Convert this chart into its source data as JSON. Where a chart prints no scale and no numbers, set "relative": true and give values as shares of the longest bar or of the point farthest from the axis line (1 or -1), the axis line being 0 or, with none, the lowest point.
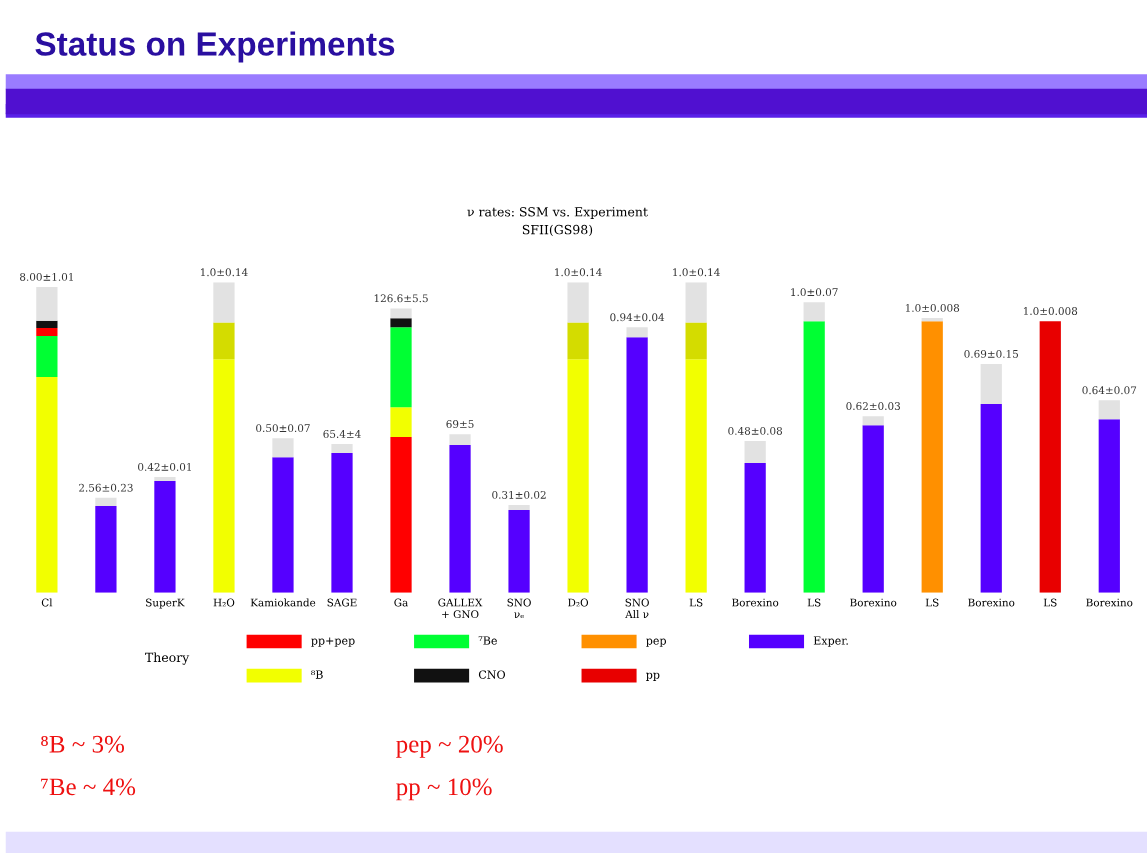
{
  "chart_data": {
    "type": "bar",
    "title": "Status on Experiments",
    "subtitle": "ν rates: SSM vs. Experiment\nSFII(GS98)",
    "categories": [
      "Cl",
      null,
      "SuperK",
      "H₂O",
      "Kamiokande",
      "SAGE",
      "Ga",
      "GALLEX\n+ GNO",
      "SNO\nνₑ",
      "D₂O",
      "SNO\nAll ν",
      "LS",
      "Borexino",
      "LS",
      "Borexino",
      "LS",
      "Borexino",
      "LS",
      "Borexino"
    ],
    "relative": true,
    "stacked": true,
    "series": [
      {
        "name": "pp+pep",
        "color": "#ff0000",
        "values": [
          null,
          null,
          null,
          null,
          null,
          null,
          0.502,
          null,
          null,
          null,
          null,
          null,
          null,
          null,
          null,
          null,
          null,
          null,
          null
        ]
      },
      {
        "name": "⁸B",
        "color": "#f2ff00",
        "values": [
          0.695,
          null,
          null,
          0.752,
          null,
          null,
          0.096,
          null,
          null,
          0.752,
          null,
          0.752,
          null,
          null,
          null,
          null,
          null,
          null,
          null
        ]
      },
      {
        "color": "#d4dc00",
        "values": [
          null,
          null,
          null,
          0.119,
          null,
          null,
          null,
          null,
          null,
          0.119,
          null,
          0.119,
          null,
          null,
          null,
          null,
          null,
          null,
          null
        ]
      },
      {
        "name": "⁷Be",
        "color": "#00ff33",
        "values": [
          0.132,
          null,
          null,
          null,
          null,
          null,
          0.257,
          null,
          null,
          null,
          null,
          null,
          null,
          0.875,
          null,
          null,
          null,
          null,
          null
        ]
      },
      {
        "color": "#ff0000",
        "values": [
          0.026,
          null,
          null,
          null,
          null,
          null,
          null,
          null,
          null,
          null,
          null,
          null,
          null,
          null,
          null,
          null,
          null,
          null,
          null
        ]
      },
      {
        "name": "CNO",
        "color": "#111111",
        "values": [
          0.023,
          null,
          null,
          null,
          null,
          null,
          0.029,
          null,
          null,
          null,
          null,
          null,
          null,
          null,
          null,
          null,
          null,
          null,
          null
        ]
      },
      {
        "name": "pep",
        "color": "#ff9000",
        "values": [
          null,
          null,
          null,
          null,
          null,
          null,
          null,
          null,
          null,
          null,
          null,
          null,
          null,
          null,
          null,
          0.875,
          null,
          null,
          null
        ]
      },
      {
        "name": "pp",
        "color": "#e80000",
        "values": [
          null,
          null,
          null,
          null,
          null,
          null,
          null,
          null,
          null,
          null,
          null,
          null,
          null,
          null,
          null,
          null,
          null,
          0.875,
          null
        ]
      },
      {
        "name": "Exper.",
        "color": "#5500ff",
        "values": [
          null,
          0.28,
          0.36,
          null,
          0.437,
          0.45,
          null,
          0.476,
          0.267,
          null,
          0.823,
          null,
          0.418,
          null,
          0.54,
          null,
          0.608,
          null,
          0.559
        ]
      },
      {
        "color": "#e2e2e2",
        "values": [
          0.109,
          0.026,
          0.013,
          0.129,
          0.061,
          0.029,
          0.032,
          0.035,
          0.016,
          0.129,
          0.032,
          0.129,
          0.071,
          0.061,
          0.029,
          0.01,
          0.129,
          null,
          0.061
        ]
      }
    ],
    "totals": [
      "8.00±1.01",
      "2.56±0.23",
      "0.42±0.01",
      "1.0±0.14",
      "0.50±0.07",
      "65.4±4",
      "126.6±5.5",
      "69±5",
      "0.31±0.02",
      "1.0±0.14",
      "0.94±0.04",
      "1.0±0.14",
      "0.48±0.08",
      "1.0±0.07",
      "0.62±0.03",
      "1.0±0.008",
      "0.69±0.15",
      "1.0±0.008",
      "0.64±0.07"
    ],
    "legend": "bottom",
    "legend_title": "Theory",
    "grid": false,
    "annotations": [
      "⁸B ~ 3%",
      "⁷Be ~ 4%",
      "pep ~ 20%",
      "pp ~ 10%"
    ]
  }
}
